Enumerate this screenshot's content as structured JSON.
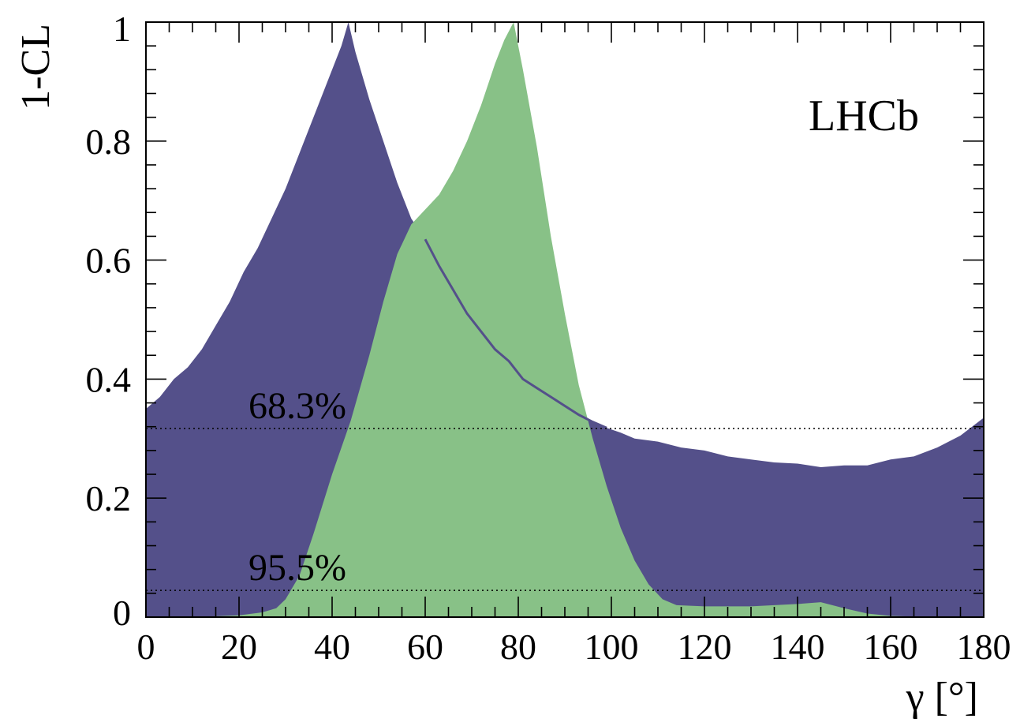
{
  "chart_data": {
    "type": "area",
    "title": "",
    "xlabel": "γ [°]",
    "ylabel": "1-CL",
    "xlim": [
      0,
      180
    ],
    "ylim": [
      0,
      1
    ],
    "grid": false,
    "x_ticks": [
      "0",
      "20",
      "40",
      "60",
      "80",
      "100",
      "120",
      "140",
      "160",
      "180"
    ],
    "y_ticks": [
      "0",
      "0.2",
      "0.4",
      "0.6",
      "0.8",
      "1"
    ],
    "x_tick_values": [
      0,
      20,
      40,
      60,
      80,
      100,
      120,
      140,
      160,
      180
    ],
    "y_tick_values": [
      0,
      0.2,
      0.4,
      0.6,
      0.8,
      1
    ],
    "annotation": "LHCb",
    "reference_lines": [
      {
        "label": "68.3%",
        "y": 0.317
      },
      {
        "label": "95.5%",
        "y": 0.045
      }
    ],
    "series": [
      {
        "color": "#54508a",
        "x": [
          0,
          3,
          6,
          9,
          12,
          15,
          18,
          21,
          24,
          27,
          30,
          33,
          36,
          39,
          42,
          43.5,
          45,
          48,
          51,
          54,
          57,
          60,
          63,
          66,
          69,
          72,
          75,
          78,
          81,
          84,
          87,
          90,
          93,
          96,
          99,
          102,
          105,
          110,
          115,
          120,
          125,
          130,
          135,
          140,
          145,
          150,
          155,
          160,
          165,
          170,
          175,
          180
        ],
        "y": [
          0.35,
          0.37,
          0.4,
          0.42,
          0.45,
          0.49,
          0.53,
          0.58,
          0.62,
          0.67,
          0.72,
          0.78,
          0.84,
          0.9,
          0.96,
          1.0,
          0.95,
          0.87,
          0.8,
          0.73,
          0.67,
          0.635,
          0.59,
          0.55,
          0.51,
          0.48,
          0.45,
          0.43,
          0.4,
          0.385,
          0.37,
          0.355,
          0.34,
          0.328,
          0.318,
          0.31,
          0.3,
          0.295,
          0.285,
          0.28,
          0.27,
          0.265,
          0.26,
          0.258,
          0.252,
          0.255,
          0.255,
          0.265,
          0.27,
          0.285,
          0.305,
          0.335
        ]
      },
      {
        "color": "#88c187",
        "x": [
          0,
          10,
          20,
          25,
          28,
          30,
          33,
          36,
          40,
          44,
          48,
          51,
          54,
          57,
          60,
          63,
          66,
          69,
          72,
          75,
          77,
          79,
          81,
          84,
          87,
          90,
          93,
          96,
          99,
          102,
          105,
          108,
          111,
          114,
          120,
          130,
          140,
          145,
          150,
          155,
          160,
          170,
          180
        ],
        "y": [
          0.0,
          0.0,
          0.003,
          0.008,
          0.015,
          0.03,
          0.07,
          0.14,
          0.24,
          0.33,
          0.44,
          0.53,
          0.61,
          0.66,
          0.685,
          0.71,
          0.75,
          0.8,
          0.86,
          0.93,
          0.97,
          1.0,
          0.92,
          0.79,
          0.64,
          0.51,
          0.39,
          0.3,
          0.22,
          0.15,
          0.095,
          0.055,
          0.03,
          0.02,
          0.018,
          0.018,
          0.022,
          0.025,
          0.015,
          0.006,
          0.002,
          0.0,
          0.0
        ]
      }
    ]
  }
}
